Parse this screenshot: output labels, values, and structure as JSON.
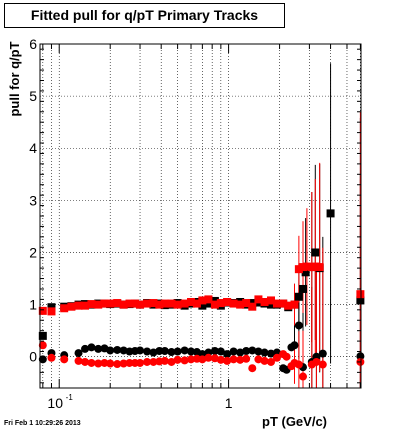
{
  "chart_data": {
    "type": "scatter",
    "title": "Fitted pull for q/pT  Primary Tracks",
    "xlabel": "pT (GeV/c)",
    "ylabel": "pull for q/pT",
    "xscale": "log",
    "xlim": [
      0.077,
      6.05
    ],
    "ylim": [
      -0.6,
      6
    ],
    "x_tick_labels": [
      {
        "x": 0.1,
        "base": "10",
        "exp": "-1"
      },
      {
        "x": 1,
        "base": "1",
        "exp": ""
      }
    ],
    "y_ticks": [
      0,
      1,
      2,
      3,
      4,
      5,
      6
    ],
    "grid": true,
    "series": [
      {
        "color": "#000000",
        "marker": "square",
        "points": [
          [
            0.08,
            0.4
          ],
          [
            0.09,
            0.95
          ],
          [
            0.107,
            0.96
          ],
          [
            0.118,
            0.97
          ],
          [
            0.13,
            1.0
          ],
          [
            0.142,
            1.01
          ],
          [
            0.155,
            1.0
          ],
          [
            0.17,
            1.02
          ],
          [
            0.185,
            1.02
          ],
          [
            0.2,
            1.01
          ],
          [
            0.22,
            1.02
          ],
          [
            0.24,
            1.0
          ],
          [
            0.26,
            1.01
          ],
          [
            0.28,
            1.02
          ],
          [
            0.3,
            1.0
          ],
          [
            0.33,
            1.03
          ],
          [
            0.36,
            1.0
          ],
          [
            0.39,
            1.02
          ],
          [
            0.42,
            0.99
          ],
          [
            0.46,
            1.0
          ],
          [
            0.5,
            1.03
          ],
          [
            0.55,
            0.98
          ],
          [
            0.6,
            1.02
          ],
          [
            0.65,
            1.05
          ],
          [
            0.7,
            0.98
          ],
          [
            0.76,
            1.02
          ],
          [
            0.83,
            1.07
          ],
          [
            0.9,
            0.98
          ],
          [
            0.98,
            1.04
          ],
          [
            1.07,
            1.03
          ],
          [
            1.17,
            1.05
          ],
          [
            1.27,
            1.0
          ],
          [
            1.38,
            1.03
          ],
          [
            1.5,
            1.04
          ],
          [
            1.63,
            1.02
          ],
          [
            1.78,
            1.0
          ],
          [
            1.93,
            1.0
          ],
          [
            2.1,
            1.02
          ],
          [
            2.25,
            0.95
          ],
          [
            2.45,
            1.0
          ],
          [
            2.6,
            1.15
          ],
          [
            2.75,
            1.3
          ],
          [
            2.85,
            1.62
          ],
          [
            3.1,
            1.72
          ],
          [
            3.25,
            2.0
          ],
          [
            3.45,
            1.7
          ],
          [
            4.0,
            2.75
          ],
          [
            6.0,
            1.08
          ]
        ]
      },
      {
        "color": "#000000",
        "marker": "circle",
        "points": [
          [
            0.08,
            -0.05
          ],
          [
            0.09,
            0.07
          ],
          [
            0.107,
            0.03
          ],
          [
            0.13,
            0.07
          ],
          [
            0.142,
            0.15
          ],
          [
            0.155,
            0.18
          ],
          [
            0.17,
            0.15
          ],
          [
            0.185,
            0.16
          ],
          [
            0.2,
            0.12
          ],
          [
            0.22,
            0.13
          ],
          [
            0.24,
            0.12
          ],
          [
            0.26,
            0.1
          ],
          [
            0.28,
            0.11
          ],
          [
            0.3,
            0.12
          ],
          [
            0.33,
            0.1
          ],
          [
            0.36,
            0.08
          ],
          [
            0.39,
            0.11
          ],
          [
            0.42,
            0.11
          ],
          [
            0.46,
            0.09
          ],
          [
            0.5,
            0.1
          ],
          [
            0.55,
            0.12
          ],
          [
            0.6,
            0.1
          ],
          [
            0.65,
            0.09
          ],
          [
            0.7,
            0.05
          ],
          [
            0.76,
            0.08
          ],
          [
            0.83,
            0.11
          ],
          [
            0.9,
            0.1
          ],
          [
            0.98,
            0.05
          ],
          [
            1.07,
            0.1
          ],
          [
            1.17,
            0.08
          ],
          [
            1.27,
            0.11
          ],
          [
            1.38,
            0.12
          ],
          [
            1.5,
            0.1
          ],
          [
            1.63,
            0.08
          ],
          [
            1.78,
            0.06
          ],
          [
            1.93,
            0.08
          ],
          [
            2.1,
            -0.22
          ],
          [
            2.2,
            -0.25
          ],
          [
            2.35,
            0.18
          ],
          [
            2.45,
            0.22
          ],
          [
            2.6,
            0.6
          ],
          [
            2.75,
            -0.2
          ],
          [
            3.1,
            -0.1
          ],
          [
            3.3,
            0.0
          ],
          [
            3.6,
            0.06
          ],
          [
            6.0,
            0.01
          ]
        ]
      },
      {
        "color": "#ff0000",
        "marker": "square",
        "points": [
          [
            0.08,
            0.88
          ],
          [
            0.09,
            0.87
          ],
          [
            0.107,
            0.93
          ],
          [
            0.118,
            0.96
          ],
          [
            0.13,
            0.98
          ],
          [
            0.142,
            0.98
          ],
          [
            0.155,
            1.01
          ],
          [
            0.17,
            1.0
          ],
          [
            0.185,
            1.02
          ],
          [
            0.2,
            1.02
          ],
          [
            0.22,
            1.03
          ],
          [
            0.24,
            1.0
          ],
          [
            0.26,
            1.02
          ],
          [
            0.28,
            1.02
          ],
          [
            0.3,
            1.0
          ],
          [
            0.33,
            1.02
          ],
          [
            0.36,
            1.03
          ],
          [
            0.39,
            1.0
          ],
          [
            0.42,
            1.02
          ],
          [
            0.46,
            1.02
          ],
          [
            0.5,
            1.0
          ],
          [
            0.55,
            1.02
          ],
          [
            0.6,
            1.05
          ],
          [
            0.65,
            1.02
          ],
          [
            0.7,
            1.08
          ],
          [
            0.76,
            1.1
          ],
          [
            0.83,
            1.0
          ],
          [
            0.9,
            1.03
          ],
          [
            0.98,
            1.05
          ],
          [
            1.07,
            1.02
          ],
          [
            1.17,
            1.0
          ],
          [
            1.27,
            1.03
          ],
          [
            1.38,
            0.96
          ],
          [
            1.5,
            1.1
          ],
          [
            1.63,
            1.05
          ],
          [
            1.78,
            1.08
          ],
          [
            1.93,
            1.02
          ],
          [
            2.1,
            1.02
          ],
          [
            2.25,
            0.98
          ],
          [
            2.45,
            1.0
          ],
          [
            2.6,
            1.68
          ],
          [
            2.75,
            1.72
          ],
          [
            2.9,
            1.73
          ],
          [
            3.1,
            1.72
          ],
          [
            3.25,
            1.73
          ],
          [
            3.45,
            1.72
          ],
          [
            6.0,
            1.2
          ]
        ]
      },
      {
        "color": "#ff0000",
        "marker": "circle",
        "points": [
          [
            0.08,
            0.22
          ],
          [
            0.09,
            -0.02
          ],
          [
            0.107,
            -0.05
          ],
          [
            0.13,
            -0.08
          ],
          [
            0.142,
            -0.1
          ],
          [
            0.155,
            -0.12
          ],
          [
            0.17,
            -0.13
          ],
          [
            0.185,
            -0.12
          ],
          [
            0.2,
            -0.13
          ],
          [
            0.22,
            -0.14
          ],
          [
            0.24,
            -0.13
          ],
          [
            0.26,
            -0.12
          ],
          [
            0.28,
            -0.12
          ],
          [
            0.3,
            -0.12
          ],
          [
            0.33,
            -0.1
          ],
          [
            0.36,
            -0.1
          ],
          [
            0.39,
            -0.09
          ],
          [
            0.42,
            -0.08
          ],
          [
            0.46,
            -0.1
          ],
          [
            0.5,
            -0.06
          ],
          [
            0.55,
            -0.07
          ],
          [
            0.6,
            -0.05
          ],
          [
            0.65,
            -0.04
          ],
          [
            0.7,
            -0.05
          ],
          [
            0.76,
            -0.02
          ],
          [
            0.83,
            -0.03
          ],
          [
            0.9,
            -0.06
          ],
          [
            0.98,
            -0.08
          ],
          [
            1.07,
            -0.05
          ],
          [
            1.17,
            -0.06
          ],
          [
            1.27,
            -0.04
          ],
          [
            1.38,
            -0.22
          ],
          [
            1.5,
            -0.05
          ],
          [
            1.63,
            -0.08
          ],
          [
            1.78,
            -0.1
          ],
          [
            1.93,
            -0.02
          ],
          [
            2.1,
            0.05
          ],
          [
            2.2,
            0.0
          ],
          [
            2.35,
            -0.18
          ],
          [
            2.45,
            -0.12
          ],
          [
            2.6,
            -0.15
          ],
          [
            2.75,
            -0.38
          ],
          [
            3.1,
            -0.15
          ],
          [
            3.3,
            -0.1
          ],
          [
            3.6,
            -0.15
          ],
          [
            6.0,
            -0.1
          ]
        ]
      }
    ]
  },
  "footer": {
    "datestamp": "Fri Feb  1 10:29:26 2013"
  }
}
